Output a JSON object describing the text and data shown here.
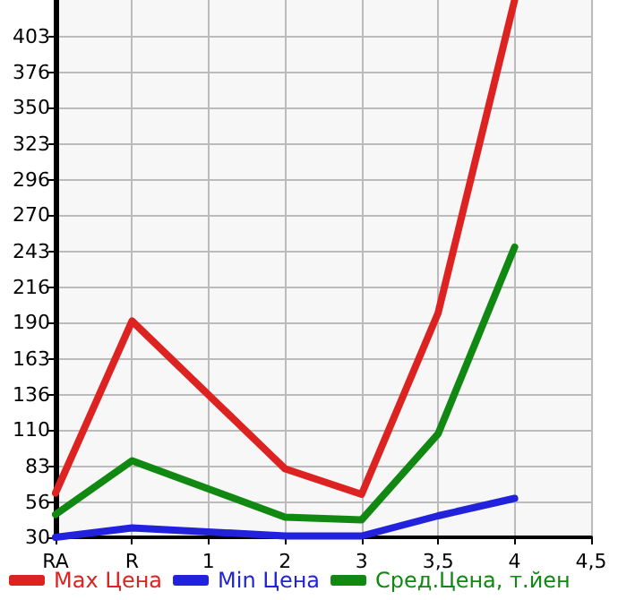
{
  "chart_data": {
    "type": "line",
    "categories": [
      "RA",
      "R",
      "1",
      "2",
      "3",
      "3,5",
      "4",
      "4,5"
    ],
    "series": [
      {
        "name": "Max Цена",
        "color": "#dd2222",
        "values": [
          63,
          191,
          null,
          81,
          62,
          197,
          430,
          null
        ]
      },
      {
        "name": "Min Цена",
        "color": "#2222dd",
        "values": [
          30,
          37,
          null,
          31,
          31,
          46,
          59,
          null
        ]
      },
      {
        "name": "Сред.Цена, т.йен",
        "color": "#118811",
        "values": [
          47,
          87,
          null,
          45,
          43,
          107,
          246,
          null
        ]
      }
    ],
    "ylim": [
      30,
      430
    ],
    "yticks": [
      30,
      56,
      83,
      110,
      136,
      163,
      190,
      216,
      243,
      270,
      296,
      323,
      350,
      376,
      403
    ],
    "grid": true,
    "legend": "bottom",
    "marker": "none",
    "line_style": "solid"
  }
}
